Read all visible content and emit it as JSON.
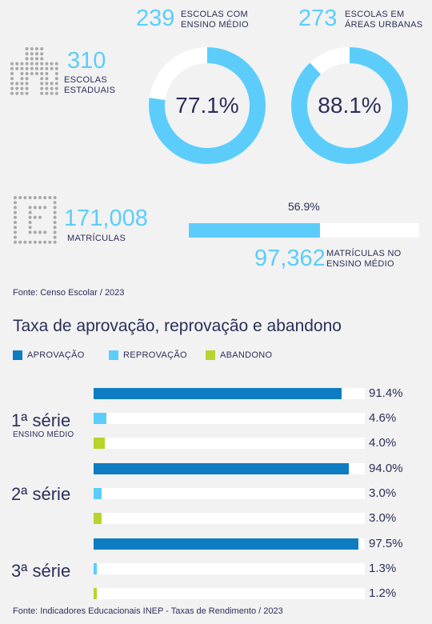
{
  "stats": {
    "schools": {
      "value": "310",
      "label_l1": "ESCOLAS",
      "label_l2": "ESTADUAIS"
    },
    "high_school": {
      "value": "239",
      "label_l1": "ESCOLAS COM",
      "label_l2": "ENSINO MÉDIO",
      "percent": 77.1,
      "percent_label": "77.1%"
    },
    "urban": {
      "value": "273",
      "label_l1": "ESCOLAS EM",
      "label_l2": "ÁREAS URBANAS",
      "percent": 88.1,
      "percent_label": "88.1%"
    },
    "enrollments": {
      "value": "171,008",
      "label": "MATRÍCULAS"
    },
    "hs_enrollments": {
      "value": "97,362",
      "label_l1": "MATRÍCULAS NO",
      "label_l2": "ENSINO MÉDIO",
      "percent": 56.9,
      "percent_label": "56.9%"
    },
    "source": "Fonte: Censo Escolar / 2023"
  },
  "colors": {
    "aprovacao": "#0d7cc1",
    "reprovacao": "#5ccdfb",
    "abandono": "#b7d42c",
    "track": "#ffffff",
    "text": "#2b2f5a"
  },
  "chart_data": {
    "type": "bar",
    "title": "Taxa de aprovação, reprovação e abandono",
    "legend": [
      "APROVAÇÃO",
      "REPROVAÇÃO",
      "ABANDONO"
    ],
    "categories": [
      "1ª série",
      "2ª série",
      "3ª série"
    ],
    "category_sub": [
      "ENSINO MÉDIO",
      "",
      ""
    ],
    "series": [
      {
        "name": "APROVAÇÃO",
        "values": [
          91.4,
          94.0,
          97.5
        ],
        "labels": [
          "91.4%",
          "94.0%",
          "97.5%"
        ]
      },
      {
        "name": "REPROVAÇÃO",
        "values": [
          4.6,
          3.0,
          1.3
        ],
        "labels": [
          "4.6%",
          "3.0%",
          "1.3%"
        ]
      },
      {
        "name": "ABANDONO",
        "values": [
          4.0,
          3.0,
          1.2
        ],
        "labels": [
          "4.0%",
          "3.0%",
          "1.2%"
        ]
      }
    ],
    "xlim": [
      0,
      100
    ],
    "source": "Fonte: Indicadores Educacionais INEP - Taxas de Rendimento / 2023"
  }
}
